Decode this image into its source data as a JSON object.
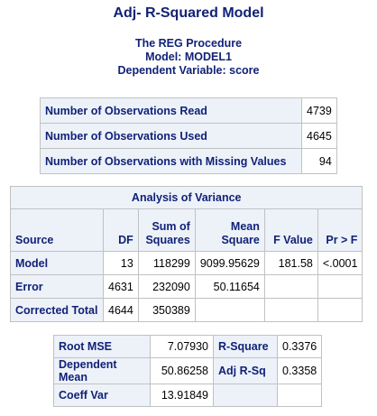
{
  "title": "Adj- R-Squared Model",
  "subtitles": [
    "The REG Procedure",
    "Model: MODEL1",
    "Dependent Variable: score"
  ],
  "observations": [
    {
      "label": "Number of Observations Read",
      "value": "4739"
    },
    {
      "label": "Number of Observations Used",
      "value": "4645"
    },
    {
      "label": "Number of Observations with Missing Values",
      "value": "94"
    }
  ],
  "anova": {
    "caption": "Analysis of Variance",
    "headers": {
      "source": "Source",
      "df": "DF",
      "ss_1": "Sum of",
      "ss_2": "Squares",
      "ms_1": "Mean",
      "ms_2": "Square",
      "f": "F Value",
      "p": "Pr > F"
    },
    "rows": [
      {
        "source": "Model",
        "df": "13",
        "ss": "118299",
        "ms": "9099.95629",
        "f": "181.58",
        "p": "<.0001"
      },
      {
        "source": "Error",
        "df": "4631",
        "ss": "232090",
        "ms": "50.11654",
        "f": "",
        "p": ""
      },
      {
        "source": "Corrected Total",
        "df": "4644",
        "ss": "350389",
        "ms": "",
        "f": "",
        "p": ""
      }
    ]
  },
  "fit": [
    {
      "l1": "Root MSE",
      "v1": "7.07930",
      "l2": "R-Square",
      "v2": "0.3376"
    },
    {
      "l1": "Dependent Mean",
      "v1": "50.86258",
      "l2": "Adj R-Sq",
      "v2": "0.3358"
    },
    {
      "l1": "Coeff Var",
      "v1": "13.91849",
      "l2": "",
      "v2": ""
    }
  ],
  "colors": {
    "header_bg": "#edf2f9",
    "header_text": "#112277",
    "border": "#c1c1c1"
  }
}
